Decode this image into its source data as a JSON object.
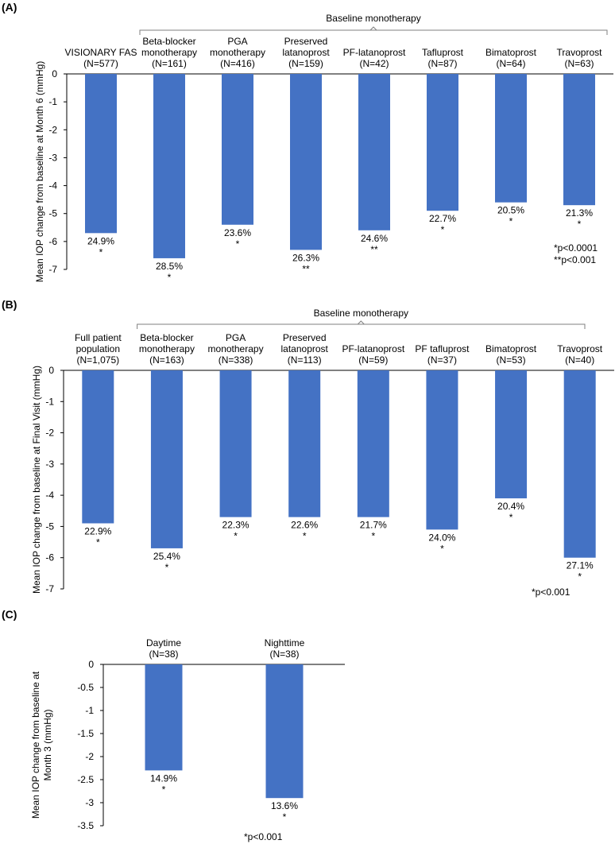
{
  "chart_data": [
    {
      "type": "bar",
      "panel_label": "(A)",
      "ylabel": "Mean IOP change from baseline at Month 6 (mmHg)",
      "ylim": [
        -7,
        0
      ],
      "yticks": [
        "0",
        "-1",
        "-2",
        "-3",
        "-4",
        "-5",
        "-6",
        "-7"
      ],
      "grid": false,
      "bracket_label": "Baseline monotherapy",
      "bracket_from": 1,
      "categories": [
        [
          "VISIONARY FAS",
          "(N=577)"
        ],
        [
          "Beta-blocker",
          "monotherapy",
          "(N=161)"
        ],
        [
          "PGA",
          "monotherapy",
          "(N=416)"
        ],
        [
          "Preserved",
          "latanoprost",
          "(N=159)"
        ],
        [
          "PF-latanoprost",
          "(N=42)"
        ],
        [
          "Tafluprost",
          "(N=87)"
        ],
        [
          "Bimatoprost",
          "(N=64)"
        ],
        [
          "Travoprost",
          "(N=63)"
        ]
      ],
      "values": [
        -5.7,
        -6.6,
        -5.4,
        -6.3,
        -5.6,
        -4.9,
        -4.6,
        -4.7
      ],
      "percent_labels": [
        "24.9%",
        "28.5%",
        "23.6%",
        "26.3%",
        "24.6%",
        "22.7%",
        "20.5%",
        "21.3%"
      ],
      "significance": [
        "*",
        "*",
        "*",
        "**",
        "**",
        "*",
        "*",
        "*"
      ],
      "notes": [
        "*p<0.0001",
        "**p<0.001"
      ]
    },
    {
      "type": "bar",
      "panel_label": "(B)",
      "ylabel": "Mean IOP change from baseline at Final Visit (mmHg)",
      "ylim": [
        -7,
        0
      ],
      "yticks": [
        "0",
        "-1",
        "-2",
        "-3",
        "-4",
        "-5",
        "-6",
        "-7"
      ],
      "grid": false,
      "bracket_label": "Baseline monotherapy",
      "bracket_from": 1,
      "categories": [
        [
          "Full patient",
          "population",
          "(N=1,075)"
        ],
        [
          "Beta-blocker",
          "monotherapy",
          "(N=163)"
        ],
        [
          "PGA",
          "monotherapy",
          "(N=338)"
        ],
        [
          "Preserved",
          "latanoprost",
          "(N=113)"
        ],
        [
          "PF-latanoprost",
          "(N=59)"
        ],
        [
          "PF tafluprost",
          "(N=37)"
        ],
        [
          "Bimatoprost",
          "(N=53)"
        ],
        [
          "Travoprost",
          "(N=40)"
        ]
      ],
      "values": [
        -4.9,
        -5.7,
        -4.7,
        -4.7,
        -4.7,
        -5.1,
        -4.1,
        -6.0
      ],
      "percent_labels": [
        "22.9%",
        "25.4%",
        "22.3%",
        "22.6%",
        "21.7%",
        "24.0%",
        "20.4%",
        "27.1%"
      ],
      "significance": [
        "*",
        "*",
        "*",
        "*",
        "*",
        "*",
        "*",
        "*"
      ],
      "notes": [
        "*p<0.001"
      ]
    },
    {
      "type": "bar",
      "panel_label": "(C)",
      "ylabel": "Mean IOP change from baseline at Month 3 (mmHg)",
      "ylabel_lines": [
        "Mean IOP change from baseline at",
        "Month 3 (mmHg)"
      ],
      "ylim": [
        -3.5,
        0
      ],
      "yticks": [
        "0",
        "-0.5",
        "-1",
        "-1.5",
        "-2",
        "-2.5",
        "-3",
        "-3.5"
      ],
      "grid": false,
      "categories": [
        [
          "Daytime",
          "(N=38)"
        ],
        [
          "Nighttime",
          "(N=38)"
        ]
      ],
      "values": [
        -2.3,
        -2.9
      ],
      "percent_labels": [
        "14.9%",
        "13.6%"
      ],
      "significance": [
        "*",
        "*"
      ],
      "notes": [
        "*p<0.001"
      ]
    }
  ],
  "colors": {
    "bar": "#4472C4",
    "axis": "#000000",
    "bracket": "#7f7f7f"
  }
}
